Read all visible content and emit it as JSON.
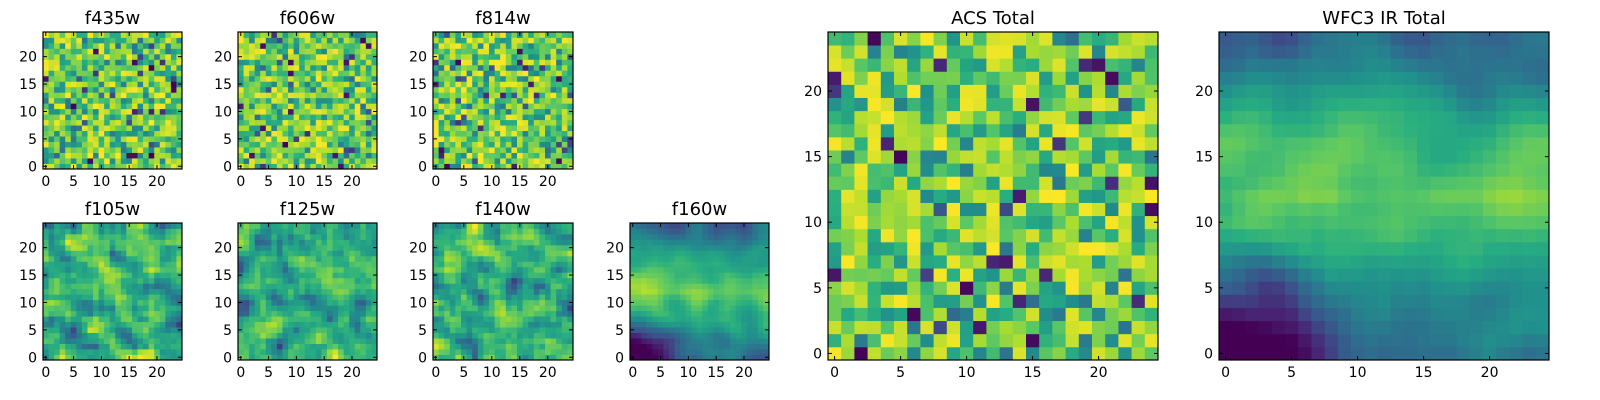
{
  "chart_data": [
    {
      "type": "heatmap",
      "title": "f435w",
      "xlabel": "",
      "ylabel": "",
      "grid_size": 25,
      "xlim": [
        -0.5,
        24.5
      ],
      "ylim": [
        -0.5,
        24.5
      ],
      "xticks": [
        0,
        5,
        10,
        15,
        20
      ],
      "yticks": [
        0,
        5,
        10,
        15,
        20
      ],
      "colormap": "viridis",
      "texture": "noise",
      "seed": 435
    },
    {
      "type": "heatmap",
      "title": "f606w",
      "xlabel": "",
      "ylabel": "",
      "grid_size": 25,
      "xlim": [
        -0.5,
        24.5
      ],
      "ylim": [
        -0.5,
        24.5
      ],
      "xticks": [
        0,
        5,
        10,
        15,
        20
      ],
      "yticks": [
        0,
        5,
        10,
        15,
        20
      ],
      "colormap": "viridis",
      "texture": "noise",
      "seed": 606
    },
    {
      "type": "heatmap",
      "title": "f814w",
      "xlabel": "",
      "ylabel": "",
      "grid_size": 25,
      "xlim": [
        -0.5,
        24.5
      ],
      "ylim": [
        -0.5,
        24.5
      ],
      "xticks": [
        0,
        5,
        10,
        15,
        20
      ],
      "yticks": [
        0,
        5,
        10,
        15,
        20
      ],
      "colormap": "viridis",
      "texture": "noise",
      "seed": 814
    },
    {
      "type": "heatmap",
      "title": "f105w",
      "xlabel": "",
      "ylabel": "",
      "grid_size": 25,
      "xlim": [
        -0.5,
        24.5
      ],
      "ylim": [
        -0.5,
        24.5
      ],
      "xticks": [
        0,
        5,
        10,
        15,
        20
      ],
      "yticks": [
        0,
        5,
        10,
        15,
        20
      ],
      "colormap": "viridis",
      "texture": "smooth",
      "seed": 105
    },
    {
      "type": "heatmap",
      "title": "f125w",
      "xlabel": "",
      "ylabel": "",
      "grid_size": 25,
      "xlim": [
        -0.5,
        24.5
      ],
      "ylim": [
        -0.5,
        24.5
      ],
      "xticks": [
        0,
        5,
        10,
        15,
        20
      ],
      "yticks": [
        0,
        5,
        10,
        15,
        20
      ],
      "colormap": "viridis",
      "texture": "smooth",
      "seed": 125
    },
    {
      "type": "heatmap",
      "title": "f140w",
      "xlabel": "",
      "ylabel": "",
      "grid_size": 25,
      "xlim": [
        -0.5,
        24.5
      ],
      "ylim": [
        -0.5,
        24.5
      ],
      "xticks": [
        0,
        5,
        10,
        15,
        20
      ],
      "yticks": [
        0,
        5,
        10,
        15,
        20
      ],
      "colormap": "viridis",
      "texture": "smooth",
      "seed": 140
    },
    {
      "type": "heatmap",
      "title": "f160w",
      "xlabel": "",
      "ylabel": "",
      "grid_size": 25,
      "xlim": [
        -0.5,
        24.5
      ],
      "ylim": [
        -0.5,
        24.5
      ],
      "xticks": [
        0,
        5,
        10,
        15,
        20
      ],
      "yticks": [
        0,
        5,
        10,
        15,
        20
      ],
      "colormap": "viridis",
      "texture": "band",
      "seed": 160
    },
    {
      "type": "heatmap",
      "title": "ACS Total",
      "xlabel": "",
      "ylabel": "",
      "grid_size": 25,
      "xlim": [
        -0.5,
        24.5
      ],
      "ylim": [
        -0.5,
        24.5
      ],
      "xticks": [
        0,
        5,
        10,
        15,
        20
      ],
      "yticks": [
        0,
        5,
        10,
        15,
        20
      ],
      "colormap": "viridis",
      "texture": "noise",
      "seed": 999
    },
    {
      "type": "heatmap",
      "title": "WFC3 IR Total",
      "xlabel": "",
      "ylabel": "",
      "grid_size": 25,
      "xlim": [
        -0.5,
        24.5
      ],
      "ylim": [
        -0.5,
        24.5
      ],
      "xticks": [
        0,
        5,
        10,
        15,
        20
      ],
      "yticks": [
        0,
        5,
        10,
        15,
        20
      ],
      "colormap": "viridis",
      "texture": "band",
      "seed": 777
    }
  ]
}
